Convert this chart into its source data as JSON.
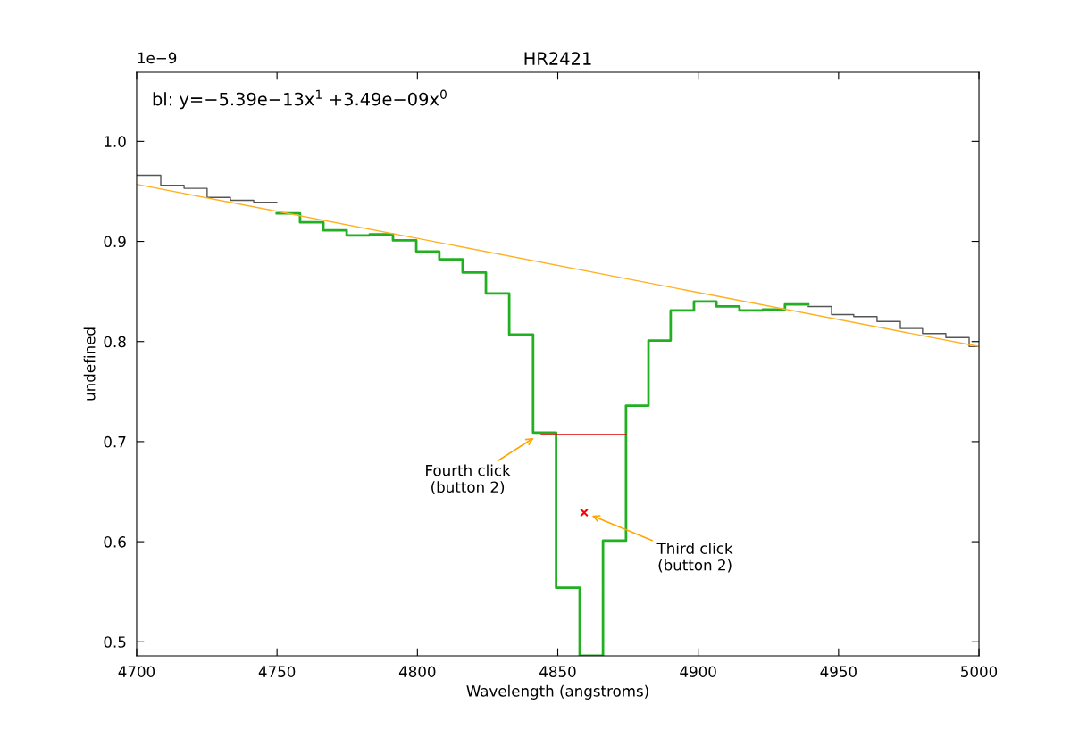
{
  "chart_data": {
    "type": "step",
    "title": "HR2421",
    "xlabel": "Wavelength (angstroms)",
    "ylabel": "undefined",
    "xlim": [
      4700,
      5000
    ],
    "xticks": [
      4700,
      4750,
      4800,
      4850,
      4900,
      4950,
      5000
    ],
    "ylim": [
      0.486,
      1.069
    ],
    "yticks": [
      0.5,
      0.6,
      0.7,
      0.8,
      0.9,
      {
        "value": 1.0,
        "label": "1.0"
      }
    ],
    "grid": false,
    "series": [
      {
        "color": "#555555",
        "x": [
          4700,
          4708.6,
          4716.9,
          4725.1,
          4733.4,
          4741.7,
          4749.9
        ],
        "values": [
          0.966,
          0.956,
          0.953,
          0.944,
          0.941,
          0.939,
          0.939
        ]
      },
      {
        "color": "#555555",
        "x": [
          4939.2,
          4947.5,
          4955.4,
          4963.7,
          4972.0,
          4979.9,
          4988.2,
          4996.5,
          5000
        ],
        "values": [
          0.835,
          0.827,
          0.825,
          0.82,
          0.813,
          0.808,
          0.804,
          0.795,
          0.795
        ]
      },
      {
        "color": "#22b022",
        "x": [
          4749.9,
          4758.2,
          4766.5,
          4774.8,
          4783.0,
          4791.3,
          4799.6,
          4807.8,
          4816.1,
          4824.4,
          4832.7,
          4841.2,
          4849.4,
          4857.8,
          4866.1,
          4874.3,
          4882.3,
          4890.2,
          4898.5,
          4906.5,
          4914.7,
          4923.0,
          4930.9,
          4939.2
        ],
        "values": [
          0.928,
          0.919,
          0.911,
          0.906,
          0.907,
          0.901,
          0.89,
          0.882,
          0.869,
          0.848,
          0.807,
          0.709,
          0.554,
          0.486,
          0.601,
          0.736,
          0.801,
          0.831,
          0.84,
          0.835,
          0.831,
          0.832,
          0.837,
          0.837
        ]
      },
      {
        "type": "line",
        "color": "#ffb020",
        "x": [
          4700,
          5000
        ],
        "values": [
          0.957,
          0.795
        ]
      },
      {
        "type": "line",
        "color": "#e00000",
        "x": [
          4844.1,
          4874.3
        ],
        "values": [
          0.707,
          0.707
        ]
      },
      {
        "type": "scatter",
        "color": "#ff0000",
        "marker": "cross",
        "x": [
          4859.4
        ],
        "values": [
          0.629
        ]
      }
    ],
    "annotations": [
      "1e−9",
      "bl: y=−5.39e−13x$^{1}$ +3.49e−09x$^{0}$",
      {
        "text": "Fourth click\n(button 2)",
        "x": 4842.2,
        "y": 0.705
      },
      {
        "text": "Third click\n(button 2)",
        "x": 4861.3,
        "y": 0.627
      }
    ]
  }
}
